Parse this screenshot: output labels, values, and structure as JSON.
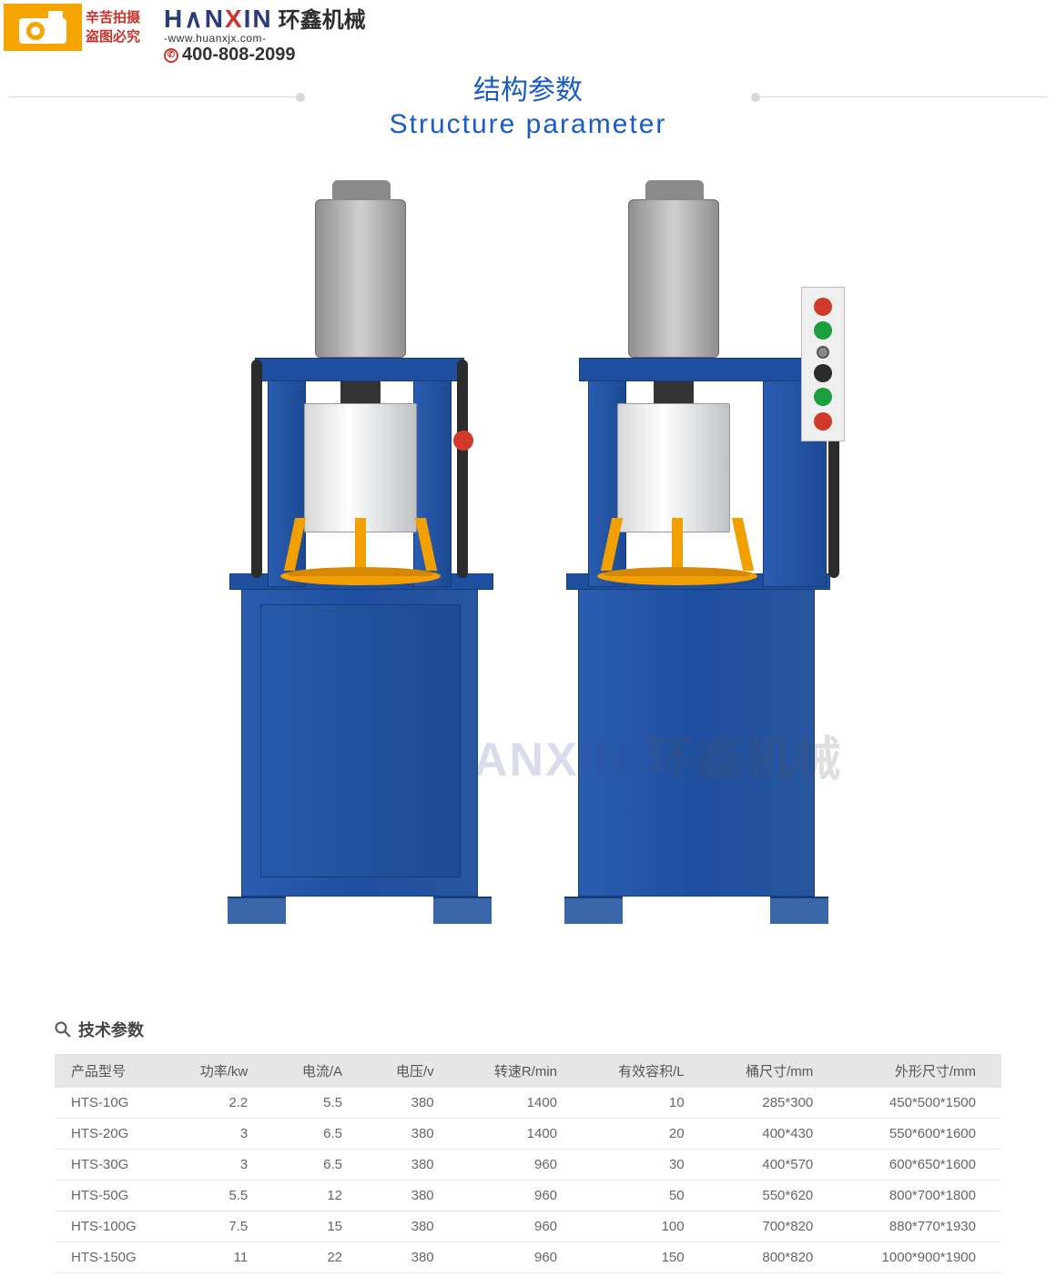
{
  "badge": {
    "line1": "辛苦拍摄",
    "line2": "盗图必究"
  },
  "logo": {
    "brand_en_pre": "H",
    "brand_en_mid1": "N",
    "brand_en_x": "X",
    "brand_en_mid2": "IN",
    "brand_cn": "环鑫机械",
    "url": "-www.huanxjx.com-",
    "phone": "400-808-2099"
  },
  "title": {
    "cn": "结构参数",
    "en": "Structure parameter"
  },
  "watermark": {
    "en": "ANXIN",
    "cn": "环鑫机械"
  },
  "tech": {
    "heading": "技术参数",
    "columns": [
      "产品型号",
      "功率/kw",
      "电流/A",
      "电压/v",
      "转速R/min",
      "有效容积/L",
      "桶尺寸/mm",
      "外形尺寸/mm"
    ],
    "col_align": [
      "left",
      "right",
      "right",
      "right",
      "right",
      "right",
      "right",
      "right"
    ],
    "rows": [
      [
        "HTS-10G",
        "2.2",
        "5.5",
        "380",
        "1400",
        "10",
        "285*300",
        "450*500*1500"
      ],
      [
        "HTS-20G",
        "3",
        "6.5",
        "380",
        "1400",
        "20",
        "400*430",
        "550*600*1600"
      ],
      [
        "HTS-30G",
        "3",
        "6.5",
        "380",
        "960",
        "30",
        "400*570",
        "600*650*1600"
      ],
      [
        "HTS-50G",
        "5.5",
        "12",
        "380",
        "960",
        "50",
        "550*620",
        "800*700*1800"
      ],
      [
        "HTS-100G",
        "7.5",
        "15",
        "380",
        "960",
        "100",
        "700*820",
        "880*770*1930"
      ],
      [
        "HTS-150G",
        "11",
        "22",
        "380",
        "960",
        "150",
        "800*820",
        "1000*900*1900"
      ]
    ],
    "header_bg": "#e6e6e6",
    "row_border": "#e6e6e6",
    "font_size": 15,
    "text_color": "#666666"
  },
  "colors": {
    "title": "#1a5bc4",
    "badge_text": "#c8332b",
    "machine_blue": "#1e4e9e",
    "machine_yellow": "#f2a000",
    "motor_grey": "#9a9a9a"
  }
}
